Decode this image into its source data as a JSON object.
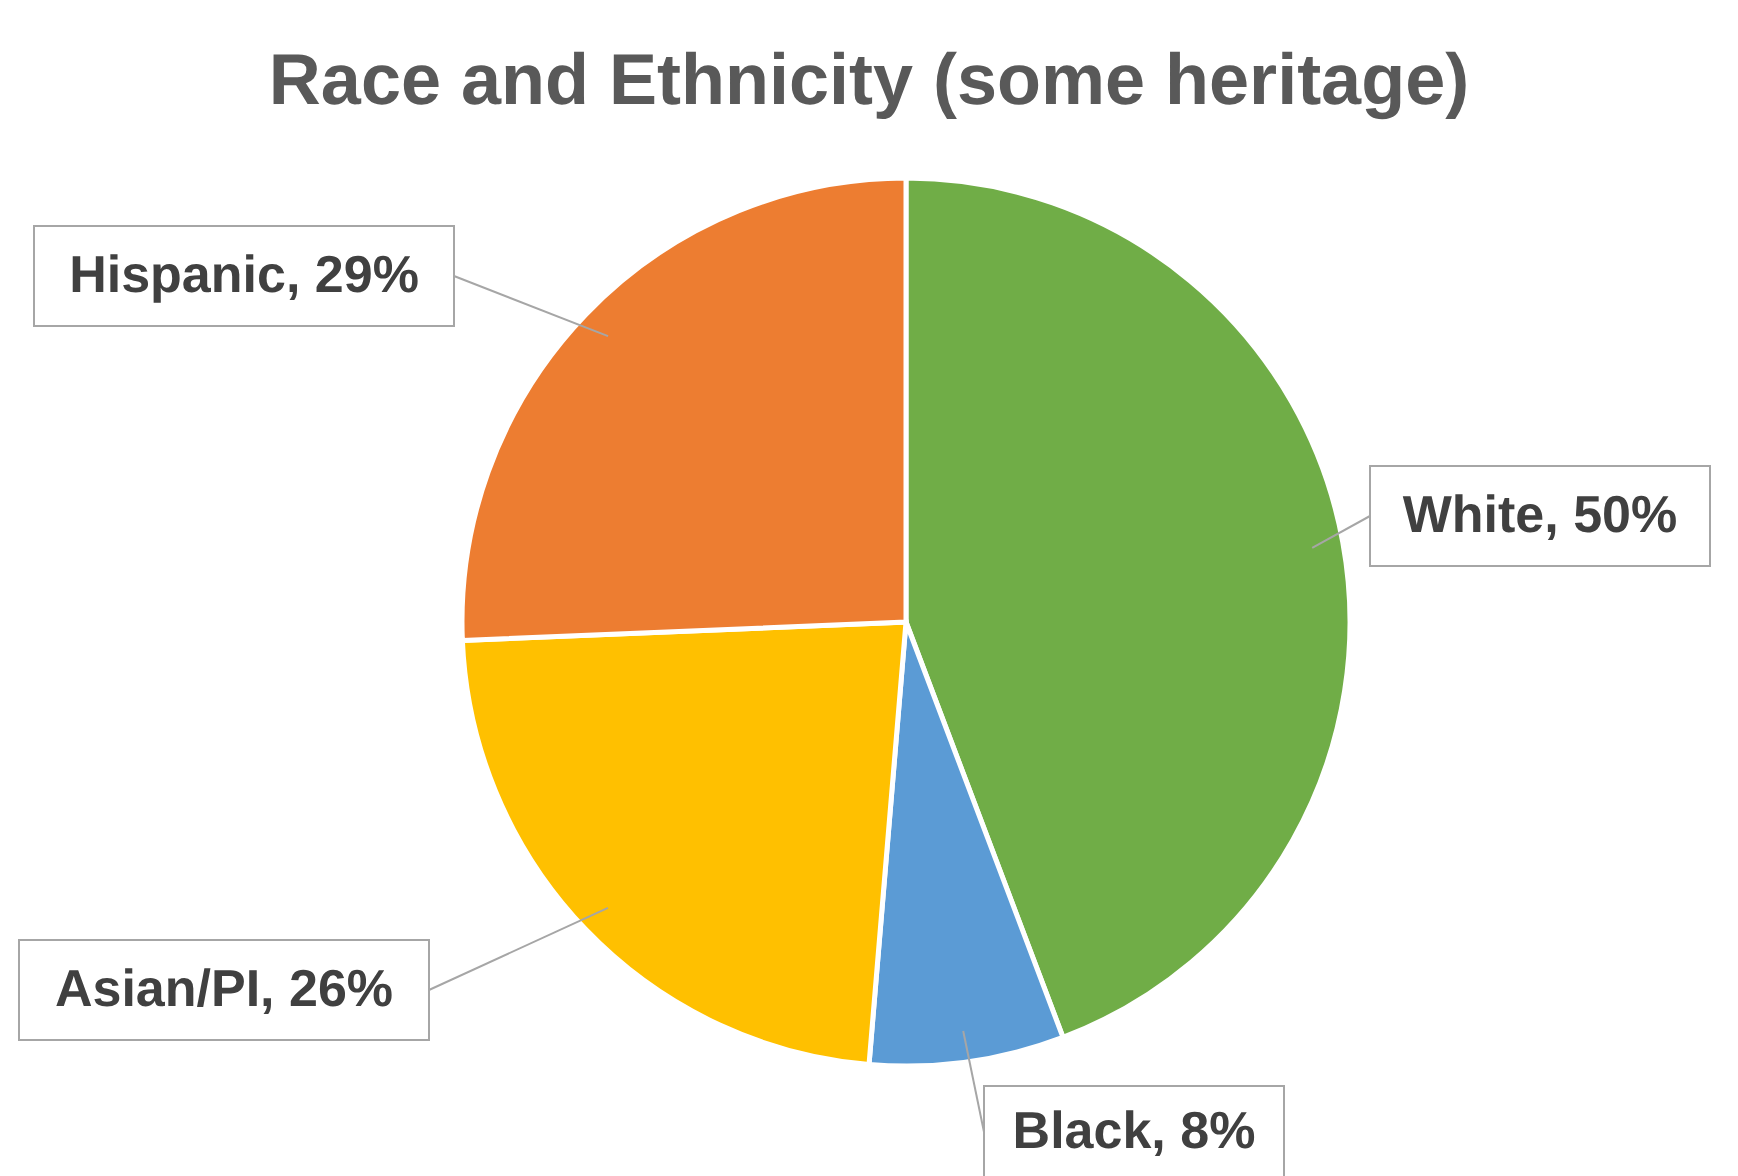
{
  "chart_data": {
    "type": "pie",
    "title": "Race and Ethnicity (some heritage)",
    "categories": [
      "White",
      "Black",
      "Asian/PI",
      "Hispanic"
    ],
    "values": [
      50,
      8,
      26,
      29
    ],
    "value_labels": [
      "50%",
      "8%",
      "26%",
      "29%"
    ],
    "colors": [
      "#70ad47",
      "#5b9bd5",
      "#ffc000",
      "#ed7d31"
    ],
    "legend": false
  }
}
